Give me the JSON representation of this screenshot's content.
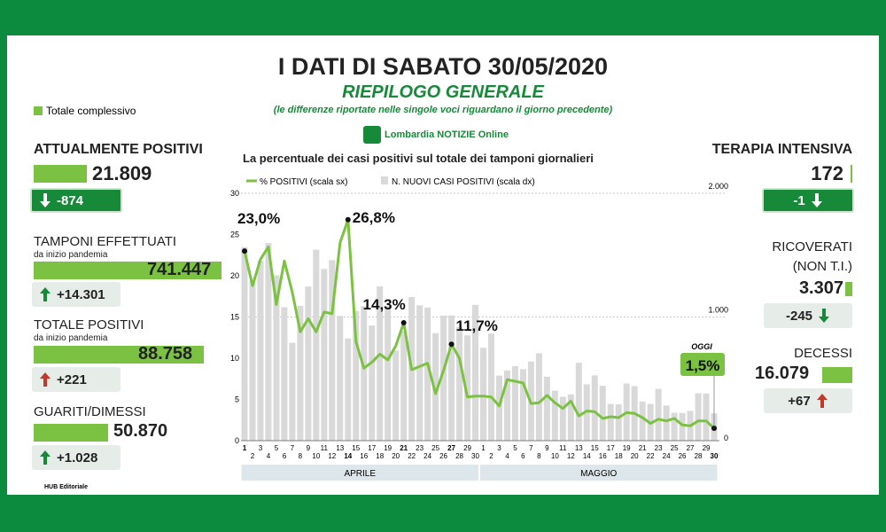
{
  "header": {
    "title": "I DATI DI SABATO 30/05/2020",
    "subtitle": "RIEPILOGO GENERALE",
    "note": "(le differenze riportate nelle singole voci riguardano il giorno precedente)",
    "legend_note": "Totale complessivo",
    "brand": "Lombardia NOTIZIE Online",
    "footer": "HUB Editoriale"
  },
  "panels_left": [
    {
      "title": "ATTUALMENTE POSITIVI",
      "value": "21.809",
      "delta": "-874"
    },
    {
      "title": "TAMPONI EFFETTUATI",
      "sub": "da inizio pandemia",
      "value": "741.447",
      "delta": "+14.301"
    },
    {
      "title": "TOTALE POSITIVI",
      "sub": "da inizio pandemia",
      "value": "88.758",
      "delta": "+221"
    },
    {
      "title": "GUARITI/DIMESSI",
      "value": "50.870",
      "delta": "+1.028"
    }
  ],
  "panels_right": [
    {
      "title": "TERAPIA INTENSIVA",
      "value": "172",
      "delta": "-1"
    },
    {
      "title": "RICOVERATI",
      "sub": "(NON T.I.)",
      "value": "3.307",
      "delta": "-245"
    },
    {
      "title": "DECESSI",
      "value": "16.079",
      "delta": "+67"
    }
  ],
  "chart_data": {
    "type": "bar-line",
    "title": "La percentuale dei casi positivi sul totale dei tamponi giornalieri",
    "categories": [
      "1",
      "2",
      "3",
      "4",
      "5",
      "6",
      "7",
      "8",
      "9",
      "10",
      "11",
      "12",
      "13",
      "14",
      "15",
      "16",
      "17",
      "18",
      "19",
      "20",
      "21",
      "22",
      "23",
      "24",
      "25",
      "26",
      "27",
      "28",
      "29",
      "30",
      "1",
      "2",
      "3",
      "4",
      "5",
      "6",
      "7",
      "8",
      "9",
      "10",
      "11",
      "12",
      "13",
      "14",
      "15",
      "16",
      "17",
      "18",
      "19",
      "20",
      "21",
      "22",
      "23",
      "24",
      "25",
      "26",
      "27",
      "28",
      "29",
      "30"
    ],
    "months": [
      "APRILE",
      "MAGGIO"
    ],
    "today_label": "OGGI",
    "series": [
      {
        "name": "% POSITIVI (scala sx)",
        "type": "line",
        "color": "#7cc242",
        "values": [
          23.0,
          18.8,
          22.0,
          23.5,
          16.5,
          21.8,
          18.0,
          13.2,
          14.8,
          13.2,
          15.6,
          15.4,
          24.0,
          26.8,
          12.0,
          8.8,
          9.5,
          10.5,
          9.8,
          11.5,
          14.3,
          8.6,
          9.0,
          9.4,
          5.7,
          8.5,
          11.7,
          10.0,
          5.3,
          5.4,
          5.4,
          5.3,
          4.2,
          7.4,
          7.2,
          7.0,
          4.5,
          4.6,
          5.5,
          4.6,
          3.9,
          4.8,
          3.0,
          3.6,
          3.5,
          2.7,
          2.9,
          2.8,
          3.4,
          3.3,
          2.8,
          2.1,
          2.6,
          2.4,
          2.7,
          1.9,
          1.8,
          2.4,
          2.4,
          1.5
        ],
        "value_labels": [
          "23,0%",
          null,
          null,
          null,
          null,
          null,
          null,
          null,
          null,
          null,
          null,
          null,
          null,
          "26,8%",
          null,
          null,
          null,
          null,
          null,
          null,
          "14,3%",
          null,
          null,
          null,
          null,
          null,
          "11,7%",
          null,
          null,
          null,
          null,
          null,
          null,
          null,
          null,
          null,
          null,
          null,
          null,
          null,
          null,
          null,
          null,
          null,
          null,
          null,
          null,
          null,
          null,
          null,
          null,
          null,
          null,
          null,
          null,
          null,
          null,
          null,
          null,
          "1,5%"
        ]
      },
      {
        "name": "N. NUOVI CASI POSITIVI (scala dx)",
        "type": "bar",
        "axis": "y2",
        "color": "#d9d9d9",
        "values": [
          1565,
          1292,
          1455,
          1598,
          1337,
          1079,
          791,
          1089,
          1246,
          1544,
          1388,
          1460,
          1009,
          827,
          1047,
          1088,
          931,
          1247,
          1091,
          729,
          887,
          1161,
          1095,
          1076,
          869,
          1011,
          1012,
          920,
          851,
          1098,
          751,
          866,
          526,
          568,
          602,
          578,
          640,
          707,
          517,
          404,
          355,
          375,
          629,
          455,
          528,
          443,
          297,
          294,
          462,
          441,
          316,
          297,
          418,
          284,
          226,
          224,
          241,
          383,
          382,
          221
        ]
      }
    ],
    "ylim": [
      0,
      30
    ],
    "yticks": [
      0,
      5,
      10,
      15,
      20,
      25,
      30
    ],
    "y2lim": [
      0,
      2000
    ],
    "y2ticks": [
      0,
      {
        "value": 1000,
        "label": "1.000"
      },
      {
        "value": 2000,
        "label": "2.000"
      }
    ],
    "grid": true
  }
}
